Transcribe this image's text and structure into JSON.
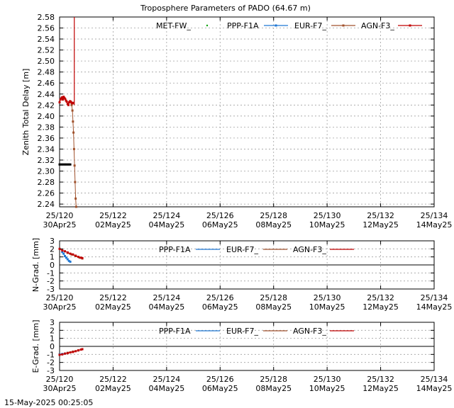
{
  "chart_data": [
    {
      "type": "line",
      "title": "Troposphere Parameters of PADO (64.67 m)",
      "ylabel": "Zenith Total Delay [m]",
      "xlim": [
        120,
        134
      ],
      "ylim": [
        2.235,
        2.58
      ],
      "grid": true,
      "legend_position": "top",
      "x_ticks": [
        {
          "doy": "25/120",
          "date": "30Apr25"
        },
        {
          "doy": "25/122",
          "date": "02May25"
        },
        {
          "doy": "25/124",
          "date": "04May25"
        },
        {
          "doy": "25/126",
          "date": "06May25"
        },
        {
          "doy": "25/128",
          "date": "08May25"
        },
        {
          "doy": "25/130",
          "date": "10May25"
        },
        {
          "doy": "25/132",
          "date": "12May25"
        },
        {
          "doy": "25/134",
          "date": "14May25"
        }
      ],
      "y_ticks": [
        "2.58",
        "2.56",
        "2.54",
        "2.52",
        "2.50",
        "2.48",
        "2.46",
        "2.44",
        "2.42",
        "2.40",
        "2.38",
        "2.36",
        "2.34",
        "2.32",
        "2.30",
        "2.28",
        "2.26",
        "2.24"
      ],
      "series": [
        {
          "name": "MET-FW_",
          "color": "#00a000",
          "x": [],
          "y": []
        },
        {
          "name": "PPP-F1A",
          "color": "#1f77d4",
          "x": [],
          "y": []
        },
        {
          "name": "EUR-F7_",
          "color": "#a0522d",
          "x": [
            120.45,
            120.48,
            120.5,
            120.52,
            120.54,
            120.56,
            120.58,
            120.6,
            120.62
          ],
          "y": [
            2.42,
            2.41,
            2.39,
            2.37,
            2.34,
            2.31,
            2.28,
            2.25,
            2.235
          ]
        },
        {
          "name": "AGN-F3_",
          "color": "#c00000",
          "x": [
            120.0,
            120.03,
            120.06,
            120.09,
            120.12,
            120.15,
            120.18,
            120.21,
            120.24,
            120.27,
            120.3,
            120.33,
            120.36,
            120.39,
            120.42,
            120.45,
            120.48,
            120.5
          ],
          "y": [
            2.425,
            2.43,
            2.432,
            2.434,
            2.43,
            2.435,
            2.433,
            2.431,
            2.428,
            2.426,
            2.422,
            2.42,
            2.425,
            2.427,
            2.426,
            2.424,
            2.423,
            2.424
          ]
        },
        {
          "name": "",
          "color": "#000000",
          "x": [
            120.0,
            120.05,
            120.1,
            120.15,
            120.2,
            120.25,
            120.3,
            120.35,
            120.4
          ],
          "y": [
            2.312,
            2.312,
            2.312,
            2.312,
            2.312,
            2.312,
            2.312,
            2.312,
            2.312
          ]
        }
      ]
    },
    {
      "type": "line",
      "ylabel": "N-Grad. [mm]",
      "xlim": [
        120,
        134
      ],
      "ylim": [
        -3,
        3
      ],
      "grid": true,
      "legend_position": "top",
      "y_ticks": [
        "3",
        "2",
        "1",
        "0",
        "-1",
        "-2",
        "-3"
      ],
      "series": [
        {
          "name": "PPP-F1A",
          "color": "#1f77d4",
          "x": [
            120.1,
            120.15,
            120.2,
            120.25,
            120.3,
            120.35,
            120.4
          ],
          "y": [
            1.6,
            1.4,
            1.1,
            0.9,
            0.7,
            0.5,
            0.4
          ]
        },
        {
          "name": "EUR-F7_",
          "color": "#a0522d",
          "x": [
            120.3,
            120.45,
            120.6,
            120.75,
            120.85
          ],
          "y": [
            1.5,
            1.3,
            1.1,
            0.9,
            0.8
          ]
        },
        {
          "name": "AGN-F3_",
          "color": "#c00000",
          "x": [
            120.0,
            120.1,
            120.2,
            120.3,
            120.4,
            120.5,
            120.6,
            120.7,
            120.8,
            120.85
          ],
          "y": [
            2.0,
            1.8,
            1.7,
            1.55,
            1.4,
            1.3,
            1.15,
            1.0,
            0.9,
            0.85
          ]
        }
      ]
    },
    {
      "type": "line",
      "ylabel": "E-Grad. [mm]",
      "xlim": [
        120,
        134
      ],
      "ylim": [
        -3,
        3
      ],
      "grid": true,
      "legend_position": "top",
      "y_ticks": [
        "3",
        "2",
        "1",
        "0",
        "-1",
        "-2",
        "-3"
      ],
      "series": [
        {
          "name": "PPP-F1A",
          "color": "#1f77d4",
          "x": [
            120.0,
            120.1,
            120.2
          ],
          "y": [
            -1.0,
            -0.95,
            -0.9
          ]
        },
        {
          "name": "EUR-F7_",
          "color": "#a0522d",
          "x": [
            120.3,
            120.5,
            120.7
          ],
          "y": [
            -0.8,
            -0.65,
            -0.5
          ]
        },
        {
          "name": "AGN-F3_",
          "color": "#c00000",
          "x": [
            120.0,
            120.1,
            120.2,
            120.3,
            120.4,
            120.5,
            120.6,
            120.7,
            120.8,
            120.85
          ],
          "y": [
            -1.05,
            -1.0,
            -0.9,
            -0.85,
            -0.75,
            -0.7,
            -0.6,
            -0.5,
            -0.4,
            -0.35
          ]
        }
      ]
    }
  ],
  "footer_timestamp": "15-May-2025 00:25:05"
}
